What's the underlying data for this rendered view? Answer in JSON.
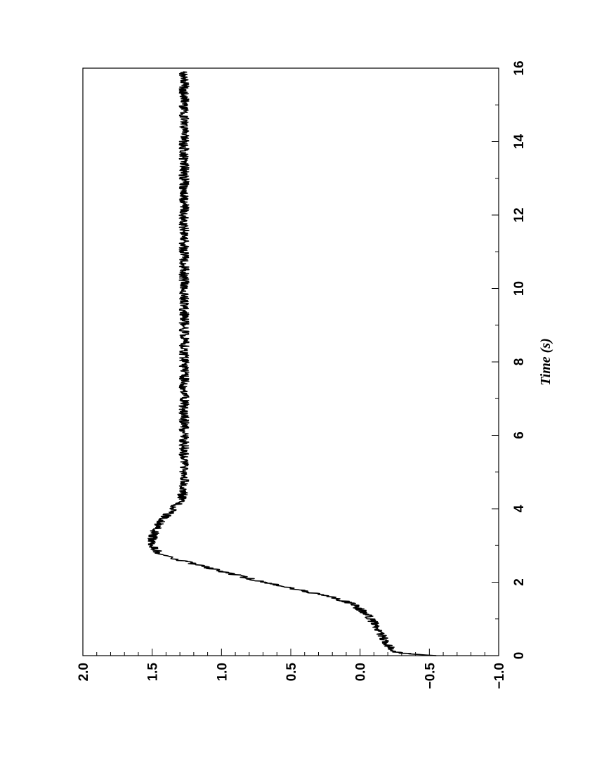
{
  "chart_data": {
    "type": "line",
    "orientation": "rotated-90",
    "title": "",
    "xlabel": "Time (s)",
    "ylabel": "",
    "xlim": [
      0,
      16
    ],
    "ylim": [
      -1.0,
      2.0
    ],
    "x_ticks": [
      0,
      2,
      4,
      6,
      8,
      10,
      12,
      14,
      16
    ],
    "x_tick_labels": [
      "0",
      "2",
      "4",
      "6",
      "8",
      "10",
      "12",
      "14",
      "16"
    ],
    "y_ticks": [
      -1.0,
      -0.5,
      0.0,
      0.5,
      1.0,
      1.5,
      2.0
    ],
    "y_tick_labels": [
      "−1.0",
      "−0.5",
      "0.0",
      "0.5",
      "1.0",
      "1.5",
      "2.0"
    ],
    "grid": false,
    "series": [
      {
        "color": "#000000",
        "x": [
          0,
          0.05,
          0.1,
          0.2,
          0.4,
          0.6,
          0.8,
          1.0,
          1.2,
          1.4,
          1.6,
          1.8,
          2.0,
          2.2,
          2.4,
          2.6,
          2.8,
          3.0,
          3.2,
          3.4,
          3.6,
          3.8,
          4.0,
          4.2,
          4.4,
          4.6,
          4.8,
          5.0,
          5.5,
          6.0,
          6.5,
          7.0,
          7.5,
          8.0,
          8.5,
          9.0,
          9.5,
          10.0,
          10.5,
          11.0,
          11.5,
          12.0,
          12.5,
          13.0,
          13.5,
          14.0,
          14.5,
          15.0,
          15.5,
          15.9
        ],
        "y": [
          -0.55,
          -0.35,
          -0.25,
          -0.22,
          -0.18,
          -0.15,
          -0.12,
          -0.08,
          -0.02,
          0.05,
          0.2,
          0.45,
          0.7,
          0.9,
          1.1,
          1.3,
          1.45,
          1.5,
          1.5,
          1.48,
          1.45,
          1.4,
          1.35,
          1.3,
          1.28,
          1.27,
          1.27,
          1.27,
          1.27,
          1.27,
          1.27,
          1.27,
          1.27,
          1.27,
          1.27,
          1.27,
          1.27,
          1.27,
          1.27,
          1.27,
          1.27,
          1.27,
          1.27,
          1.27,
          1.27,
          1.27,
          1.27,
          1.27,
          1.27,
          1.27
        ]
      }
    ]
  },
  "colors": {
    "line": "#000000",
    "frame": "#000000",
    "background": "#ffffff"
  }
}
